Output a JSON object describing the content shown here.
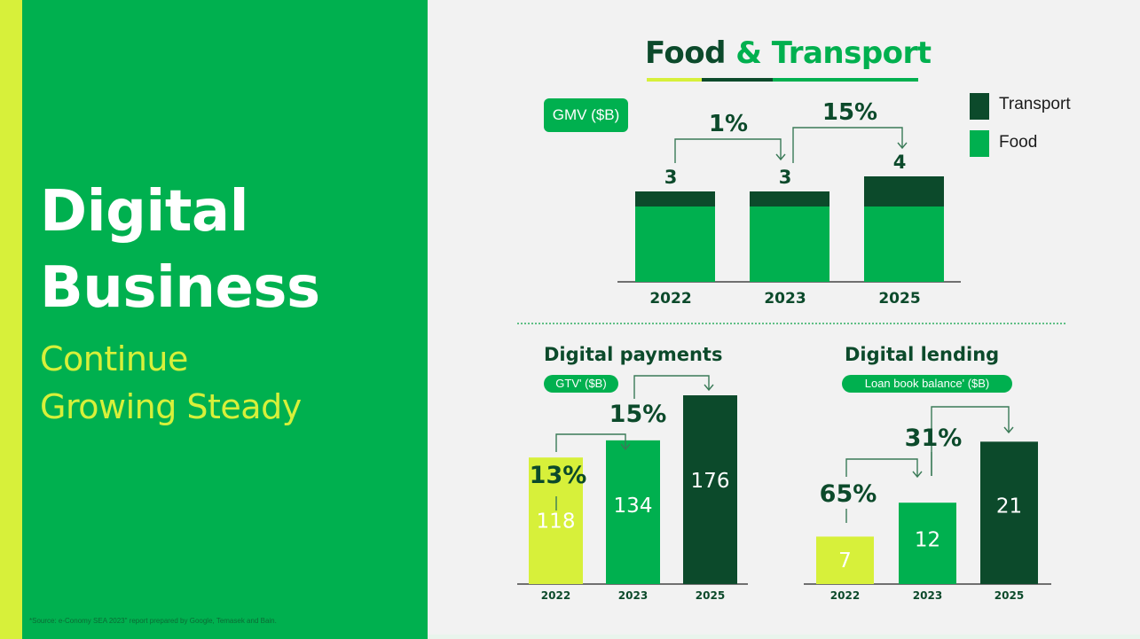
{
  "left_panel": {
    "title_line1": "Digital",
    "title_line2": "Business",
    "subtitle_line1": "Continue",
    "subtitle_line2": "Growing Steady",
    "footnote": "*Source: e-Conomy SEA 2023\" report prepared by Google, Temasek and Bain."
  },
  "colors": {
    "lime": "#d7f03a",
    "brand_green": "#00b04f",
    "dark_green": "#0c4a2b",
    "connector": "#3a7a57",
    "background": "#f2f2f2"
  },
  "food_transport": {
    "title_part1": "Food",
    "title_part2": "& Transport",
    "metric_pill": "GMV ($B)",
    "legend": [
      {
        "label": "Transport",
        "color": "#0c4a2b"
      },
      {
        "label": "Food",
        "color": "#00b04f"
      }
    ]
  },
  "digital_payments": {
    "title": "Digital payments",
    "metric_pill": "GTV' ($B)"
  },
  "digital_lending": {
    "title": "Digital lending",
    "metric_pill": "Loan book balance' ($B)"
  },
  "chart_data": [
    {
      "type": "bar",
      "stacked": true,
      "title": "Food & Transport",
      "ylabel": "GMV ($B)",
      "categories": [
        "2022",
        "2023",
        "2025"
      ],
      "series": [
        {
          "name": "Food",
          "values": [
            2.5,
            2.5,
            2.5
          ]
        },
        {
          "name": "Transport",
          "values": [
            0.5,
            0.5,
            1.0
          ]
        }
      ],
      "totals": [
        "3",
        "3",
        "4"
      ],
      "growth_labels": [
        "1%",
        "15%"
      ],
      "legend": "right"
    },
    {
      "type": "bar",
      "title": "Digital payments",
      "ylabel": "GTV' ($B)",
      "categories": [
        "2022",
        "2023",
        "2025"
      ],
      "values": [
        118,
        134,
        176
      ],
      "growth_labels": [
        "13%",
        "15%"
      ],
      "bar_colors": [
        "#d7f03a",
        "#00b04f",
        "#0c4a2b"
      ]
    },
    {
      "type": "bar",
      "title": "Digital lending",
      "ylabel": "Loan book balance' ($B)",
      "categories": [
        "2022",
        "2023",
        "2025"
      ],
      "values": [
        7,
        12,
        21
      ],
      "growth_labels": [
        "65%",
        "31%"
      ],
      "bar_colors": [
        "#d7f03a",
        "#00b04f",
        "#0c4a2b"
      ]
    }
  ]
}
